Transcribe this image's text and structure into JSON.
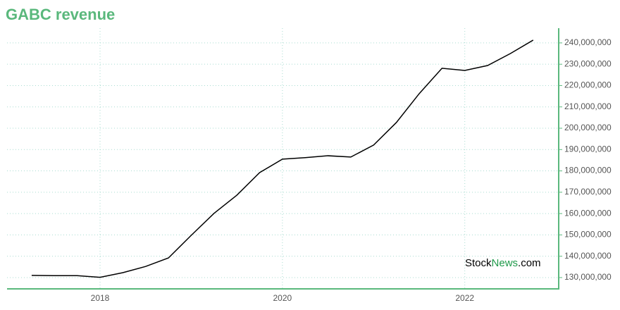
{
  "chart_data": {
    "type": "line",
    "title": "GABC revenue",
    "watermark": [
      "Stock",
      "News",
      ".com"
    ],
    "x": [
      2017.25,
      2017.5,
      2017.75,
      2018,
      2018.25,
      2018.5,
      2018.75,
      2019,
      2019.25,
      2019.5,
      2019.75,
      2020,
      2020.25,
      2020.5,
      2020.75,
      2021,
      2021.25,
      2021.5,
      2021.75,
      2022,
      2022.25,
      2022.5,
      2022.75
    ],
    "series": [
      {
        "name": "GABC revenue",
        "color": "#000000",
        "values": [
          131000000,
          130900000,
          130900000,
          130100000,
          132300000,
          135200000,
          139200000,
          149800000,
          160100000,
          168600000,
          179200000,
          185500000,
          186200000,
          187100000,
          186500000,
          192100000,
          202700000,
          216200000,
          228100000,
          227100000,
          229400000,
          235000000,
          241300000
        ]
      }
    ],
    "xlim": [
      2016.98,
      2023.03
    ],
    "xticks": [
      2018,
      2020,
      2022
    ],
    "ylim": [
      124700000,
      246900000
    ],
    "yticks": [
      {
        "value": 130000000,
        "label": "130,000,000"
      },
      {
        "value": 140000000,
        "label": "140,000,000"
      },
      {
        "value": 150000000,
        "label": "150,000,000"
      },
      {
        "value": 160000000,
        "label": "160,000,000"
      },
      {
        "value": 170000000,
        "label": "170,000,000"
      },
      {
        "value": 180000000,
        "label": "180,000,000"
      },
      {
        "value": 190000000,
        "label": "190,000,000"
      },
      {
        "value": 200000000,
        "label": "200,000,000"
      },
      {
        "value": 210000000,
        "label": "210,000,000"
      },
      {
        "value": 220000000,
        "label": "220,000,000"
      },
      {
        "value": 230000000,
        "label": "230,000,000"
      },
      {
        "value": 240000000,
        "label": "240,000,000"
      }
    ],
    "grid": true,
    "axis_color": "#5ab87c"
  }
}
